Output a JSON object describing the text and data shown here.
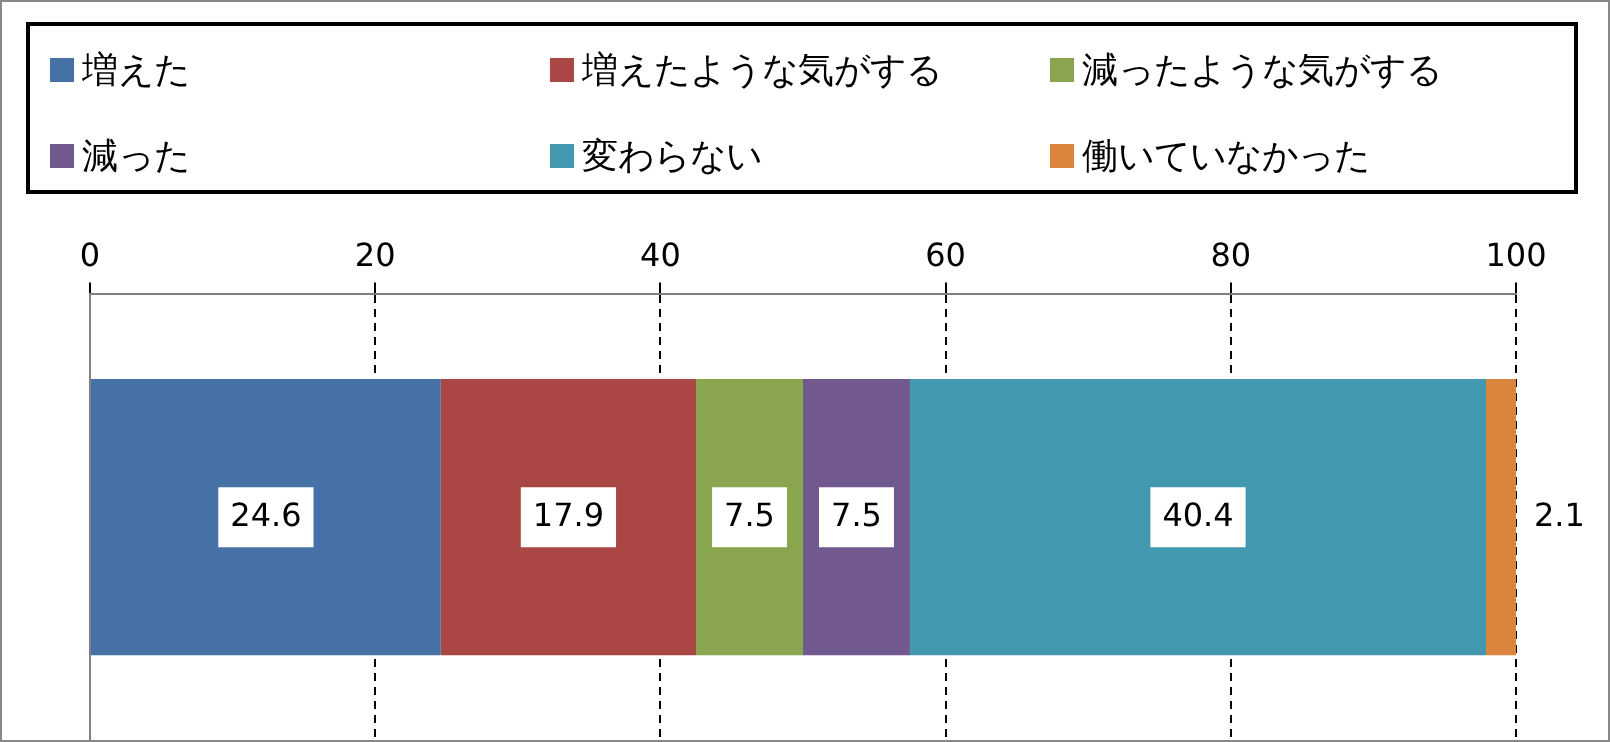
{
  "chart_data": {
    "type": "bar",
    "orientation": "horizontal",
    "stacked": true,
    "categories": [
      null
    ],
    "series": [
      {
        "name": "増えた",
        "color": "#4672a8",
        "values": [
          24.6
        ]
      },
      {
        "name": "増えたような気がする",
        "color": "#aa4643",
        "values": [
          17.9
        ]
      },
      {
        "name": "減ったような気がする",
        "color": "#89a54e",
        "values": [
          7.5
        ]
      },
      {
        "name": "減った",
        "color": "#71588f",
        "values": [
          7.5
        ]
      },
      {
        "name": "変わらない",
        "color": "#4198af",
        "values": [
          40.4
        ]
      },
      {
        "name": "働いていなかった",
        "color": "#db843d",
        "values": [
          2.1
        ]
      }
    ],
    "xlim": [
      0,
      100
    ],
    "xticks": [
      0,
      20,
      40,
      60,
      80,
      100
    ],
    "grid": "x",
    "legend": "top",
    "data_labels": true
  }
}
